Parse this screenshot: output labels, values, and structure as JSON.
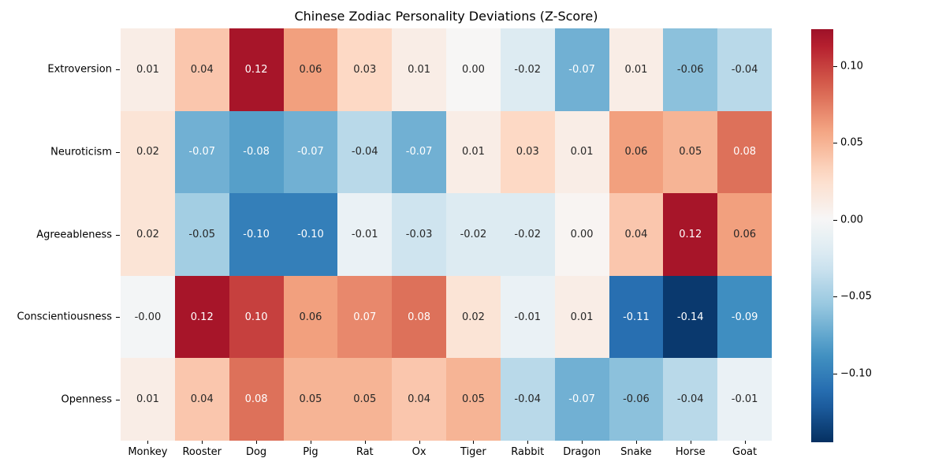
{
  "chart_data": {
    "type": "heatmap",
    "title": "Chinese Zodiac Personality Deviations (Z-Score)",
    "rows": [
      "Extroversion",
      "Neuroticism",
      "Agreeableness",
      "Conscientiousness",
      "Openness"
    ],
    "columns": [
      "Monkey",
      "Rooster",
      "Dog",
      "Pig",
      "Rat",
      "Ox",
      "Tiger",
      "Rabbit",
      "Dragon",
      "Snake",
      "Horse",
      "Goat"
    ],
    "values": [
      [
        0.01,
        0.04,
        0.12,
        0.06,
        0.03,
        0.01,
        0.001,
        -0.02,
        -0.07,
        0.01,
        -0.06,
        -0.04
      ],
      [
        0.02,
        -0.07,
        -0.08,
        -0.07,
        -0.04,
        -0.07,
        0.01,
        0.03,
        0.01,
        0.06,
        0.05,
        0.08
      ],
      [
        0.02,
        -0.05,
        -0.1,
        -0.1,
        -0.01,
        -0.03,
        -0.02,
        -0.02,
        0.003,
        0.04,
        0.12,
        0.06
      ],
      [
        -0.003,
        0.12,
        0.1,
        0.06,
        0.07,
        0.08,
        0.02,
        -0.01,
        0.01,
        -0.11,
        -0.14,
        -0.09
      ],
      [
        0.01,
        0.04,
        0.08,
        0.05,
        0.05,
        0.04,
        0.05,
        -0.04,
        -0.07,
        -0.06,
        -0.04,
        -0.01
      ]
    ],
    "cell_labels": [
      [
        "0.01",
        "0.04",
        "0.12",
        "0.06",
        "0.03",
        "0.01",
        "0.00",
        "-0.02",
        "-0.07",
        "0.01",
        "-0.06",
        "-0.04"
      ],
      [
        "0.02",
        "-0.07",
        "-0.08",
        "-0.07",
        "-0.04",
        "-0.07",
        "0.01",
        "0.03",
        "0.01",
        "0.06",
        "0.05",
        "0.08"
      ],
      [
        "0.02",
        "-0.05",
        "-0.10",
        "-0.10",
        "-0.01",
        "-0.03",
        "-0.02",
        "-0.02",
        "0.00",
        "0.04",
        "0.12",
        "0.06"
      ],
      [
        "-0.00",
        "0.12",
        "0.10",
        "0.06",
        "0.07",
        "0.08",
        "0.02",
        "-0.01",
        "0.01",
        "-0.11",
        "-0.14",
        "-0.09"
      ],
      [
        "0.01",
        "0.04",
        "0.08",
        "0.05",
        "0.05",
        "0.04",
        "0.05",
        "-0.04",
        "-0.07",
        "-0.06",
        "-0.04",
        "-0.01"
      ]
    ],
    "center": 0,
    "vmin": -0.1449,
    "vmax": 0.124,
    "colormap": {
      "name": "RdBu_r",
      "anchors_rgb": [
        [
          5,
          48,
          97
        ],
        [
          33,
          102,
          172
        ],
        [
          67,
          147,
          195
        ],
        [
          146,
          197,
          222
        ],
        [
          209,
          229,
          240
        ],
        [
          247,
          247,
          247
        ],
        [
          253,
          219,
          199
        ],
        [
          244,
          165,
          130
        ],
        [
          214,
          96,
          77
        ],
        [
          178,
          24,
          43
        ],
        [
          103,
          0,
          31
        ]
      ]
    },
    "colorbar": {
      "ticks": [
        {
          "value": 0.1,
          "label": "0.10"
        },
        {
          "value": 0.05,
          "label": "0.05"
        },
        {
          "value": 0.0,
          "label": "0.00"
        },
        {
          "value": -0.05,
          "label": "−0.05"
        },
        {
          "value": -0.1,
          "label": "−0.10"
        }
      ]
    },
    "annotation_text_colors": {
      "dark": "#262626",
      "light": "#ffffff"
    },
    "grid": "off",
    "legend_position": "right-colorbar"
  }
}
